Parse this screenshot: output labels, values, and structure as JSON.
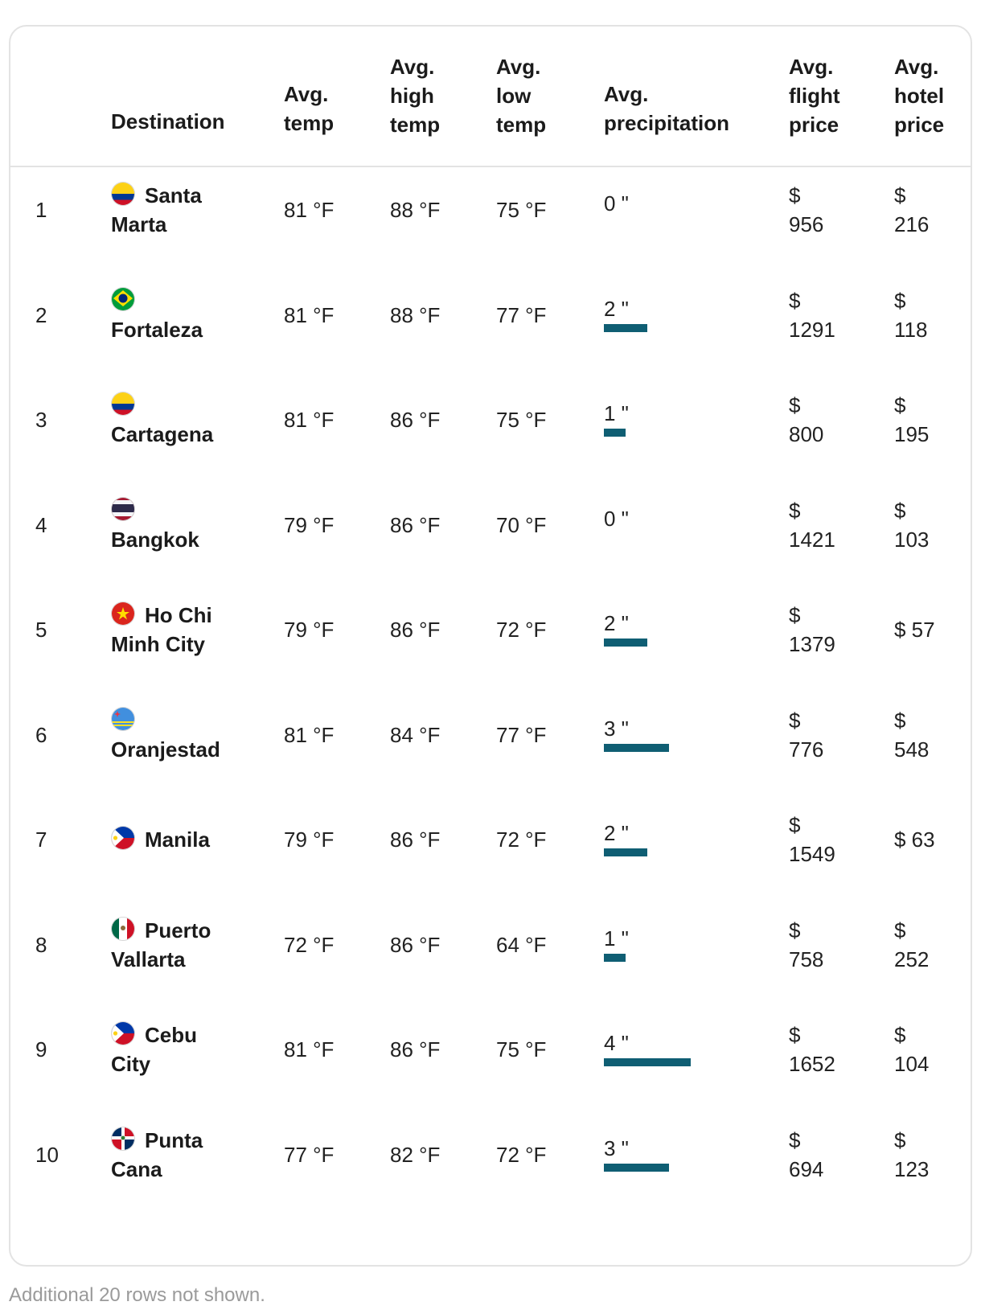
{
  "header": {
    "destination": "Destination",
    "avg_temp": [
      "Avg.",
      "temp"
    ],
    "avg_high": [
      "Avg.",
      "high",
      "temp"
    ],
    "avg_low": [
      "Avg.",
      "low",
      "temp"
    ],
    "avg_precip": [
      "Avg.",
      "precipitation"
    ],
    "avg_flight": [
      "Avg.",
      "flight",
      "price"
    ],
    "avg_hotel": [
      "Avg.",
      "hotel",
      "price"
    ]
  },
  "rows": [
    {
      "rank": "1",
      "name_lines": [
        "Santa",
        "Marta"
      ],
      "flag": "colombia-flag-icon",
      "temp": "81 °F",
      "high": "88 °F",
      "low": "75 °F",
      "precip": "0 \"",
      "precip_value": 0,
      "flight_lines": [
        "$",
        "956"
      ],
      "hotel_lines": [
        "$",
        "216"
      ]
    },
    {
      "rank": "2",
      "name_lines": [
        "",
        "Fortaleza"
      ],
      "flag": "brazil-flag-icon",
      "temp": "81 °F",
      "high": "88 °F",
      "low": "77 °F",
      "precip": "2 \"",
      "precip_value": 2,
      "flight_lines": [
        "$",
        "1291"
      ],
      "hotel_lines": [
        "$",
        "118"
      ]
    },
    {
      "rank": "3",
      "name_lines": [
        "",
        "Cartagena"
      ],
      "flag": "colombia-flag-icon",
      "temp": "81 °F",
      "high": "86 °F",
      "low": "75 °F",
      "precip": "1 \"",
      "precip_value": 1,
      "flight_lines": [
        "$",
        "800"
      ],
      "hotel_lines": [
        "$",
        "195"
      ]
    },
    {
      "rank": "4",
      "name_lines": [
        "",
        "Bangkok"
      ],
      "flag": "thailand-flag-icon",
      "temp": "79 °F",
      "high": "86 °F",
      "low": "70 °F",
      "precip": "0 \"",
      "precip_value": 0,
      "flight_lines": [
        "$",
        "1421"
      ],
      "hotel_lines": [
        "$",
        "103"
      ]
    },
    {
      "rank": "5",
      "name_lines": [
        "Ho Chi",
        "Minh City"
      ],
      "flag": "vietnam-flag-icon",
      "temp": "79 °F",
      "high": "86 °F",
      "low": "72 °F",
      "precip": "2 \"",
      "precip_value": 2,
      "flight_lines": [
        "$",
        "1379"
      ],
      "hotel_lines": [
        "$ 57"
      ]
    },
    {
      "rank": "6",
      "name_lines": [
        "",
        "Oranjestad"
      ],
      "flag": "aruba-flag-icon",
      "temp": "81 °F",
      "high": "84 °F",
      "low": "77 °F",
      "precip": "3 \"",
      "precip_value": 3,
      "flight_lines": [
        "$",
        "776"
      ],
      "hotel_lines": [
        "$",
        "548"
      ]
    },
    {
      "rank": "7",
      "name_lines": [
        "Manila"
      ],
      "flag": "philippines-flag-icon",
      "temp": "79 °F",
      "high": "86 °F",
      "low": "72 °F",
      "precip": "2 \"",
      "precip_value": 2,
      "flight_lines": [
        "$",
        "1549"
      ],
      "hotel_lines": [
        "$ 63"
      ]
    },
    {
      "rank": "8",
      "name_lines": [
        "Puerto",
        "Vallarta"
      ],
      "flag": "mexico-flag-icon",
      "temp": "72 °F",
      "high": "86 °F",
      "low": "64 °F",
      "precip": "1 \"",
      "precip_value": 1,
      "flight_lines": [
        "$",
        "758"
      ],
      "hotel_lines": [
        "$",
        "252"
      ]
    },
    {
      "rank": "9",
      "name_lines": [
        "Cebu",
        "City"
      ],
      "flag": "philippines-flag-icon",
      "temp": "81 °F",
      "high": "86 °F",
      "low": "75 °F",
      "precip": "4 \"",
      "precip_value": 4,
      "flight_lines": [
        "$",
        "1652"
      ],
      "hotel_lines": [
        "$",
        "104"
      ]
    },
    {
      "rank": "10",
      "name_lines": [
        "Punta",
        "Cana"
      ],
      "flag": "dominican-republic-flag-icon",
      "temp": "77 °F",
      "high": "82 °F",
      "low": "72 °F",
      "precip": "3 \"",
      "precip_value": 3,
      "flight_lines": [
        "$",
        "694"
      ],
      "hotel_lines": [
        "$",
        "123"
      ]
    }
  ],
  "colors": {
    "precip_bar": "#0f5e73",
    "border": "#e3e3e3",
    "footer_text": "#9a9a9a"
  },
  "footer": "Additional 20 rows not shown."
}
